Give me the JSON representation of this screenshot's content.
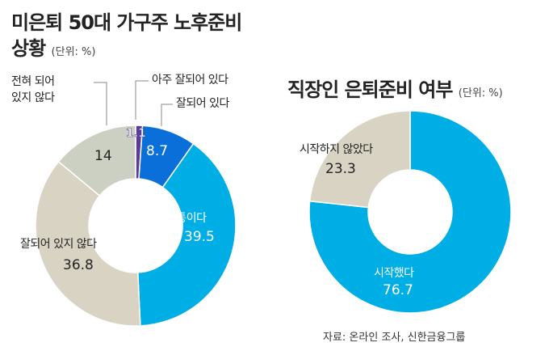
{
  "colors": {
    "beige": "#d9d3c3",
    "grey_green": "#ccd0c2",
    "light_blue": "#00aee6",
    "dark_blue": "#0b6fd9",
    "purple": "#5a3a9a"
  },
  "chart_data": [
    {
      "type": "pie",
      "style": "donut",
      "title": "미은퇴 50대 가구주 노후준비 상황",
      "title_line1": "미은퇴 50대 가구주 노후준비",
      "title_line2": "상황",
      "unit": "(단위: %)",
      "slices": [
        {
          "label": "아주 잘되어 있다",
          "value": 1.1,
          "value_text": "1.1",
          "color": "#5a3a9a"
        },
        {
          "label": "잘되어 있다",
          "value": 8.7,
          "value_text": "8.7",
          "color": "#0b6fd9"
        },
        {
          "label": "보통이다",
          "value": 39.5,
          "value_text": "39.5",
          "color": "#00aee6"
        },
        {
          "label": "잘되어 있지 않다",
          "value": 36.8,
          "value_text": "36.8",
          "color": "#d9d3c3"
        },
        {
          "label": "전혀 되어 있지 않다",
          "label_line1": "전혀 되어",
          "label_line2": "있지 않다",
          "value": 14,
          "value_text": "14",
          "color": "#ccd0c2"
        }
      ]
    },
    {
      "type": "pie",
      "style": "donut",
      "title": "직장인 은퇴준비 여부",
      "unit": "(단위: %)",
      "slices": [
        {
          "label": "시작했다",
          "value": 76.7,
          "value_text": "76.7",
          "color": "#00aee6"
        },
        {
          "label": "시작하지 않았다",
          "value": 23.3,
          "value_text": "23.3",
          "color": "#d9d3c3"
        }
      ]
    }
  ],
  "source": "자료: 온라인 조사, 신한금융그룹"
}
